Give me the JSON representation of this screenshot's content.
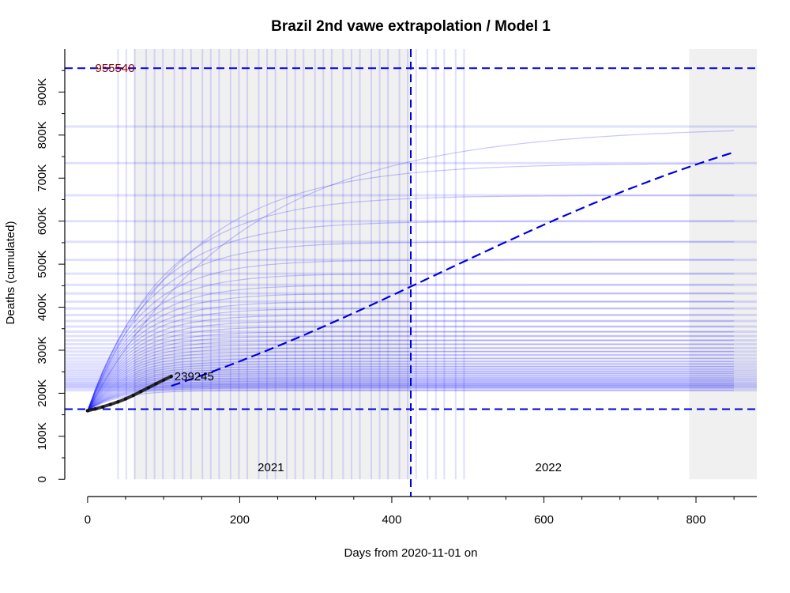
{
  "chart_data": {
    "type": "line",
    "title": "Brazil 2nd vawe extrapolation / Model 1",
    "xlabel": "Days from 2020-11-01 on",
    "ylabel": "Deaths (cumulated)",
    "xlim": [
      -30,
      880
    ],
    "ylim": [
      -40000,
      1000000
    ],
    "x_ticks": [
      0,
      200,
      400,
      600,
      800
    ],
    "x_tick_labels": [
      "0",
      "200",
      "400",
      "600",
      "800"
    ],
    "y_ticks": [
      0,
      100000,
      200000,
      300000,
      400000,
      500000,
      600000,
      700000,
      800000,
      900000
    ],
    "y_tick_labels": [
      "0",
      "100K",
      "200K",
      "300K",
      "400K",
      "500K",
      "600K",
      "700K",
      "800K",
      "900K"
    ],
    "year_labels": [
      {
        "text": "2021",
        "x": 241
      },
      {
        "text": "2022",
        "x": 606
      }
    ],
    "year_shading": [
      {
        "from": 61,
        "to": 425
      },
      {
        "from": 791,
        "to": 880
      }
    ],
    "observed": {
      "x": [
        0,
        10,
        20,
        30,
        40,
        50,
        60,
        70,
        80,
        90,
        100,
        110
      ],
      "y": [
        159500,
        163500,
        168500,
        174000,
        180000,
        187000,
        195000,
        204000,
        213000,
        222000,
        231000,
        239245
      ]
    },
    "observed_label": "239245",
    "model": {
      "start_x": 0,
      "start_y": 159500,
      "end_x": 850,
      "end_y": 760000,
      "plateau": 955540,
      "inflection_x": 425,
      "inflection_y": 557000
    },
    "reference_lines": {
      "upper_y": 955540,
      "upper_label": "955540",
      "lower_y": 163000,
      "vertical_x": 425
    },
    "ensemble_plateaus": [
      207000,
      212000,
      215000,
      218000,
      221000,
      224000,
      228000,
      232000,
      236000,
      241000,
      246000,
      251000,
      256000,
      262000,
      268000,
      274000,
      281000,
      289000,
      297000,
      305000,
      314000,
      323000,
      333000,
      343000,
      355000,
      368000,
      382000,
      397000,
      413000,
      432000,
      452000,
      478000,
      510000,
      552000,
      600000,
      660000,
      735000,
      820000
    ],
    "colors": {
      "model_line": "#0000dd",
      "ensemble": "#0000ff",
      "observed": "#111111",
      "upper_label": "#8b0000",
      "shading": "#f0f0f0"
    }
  }
}
